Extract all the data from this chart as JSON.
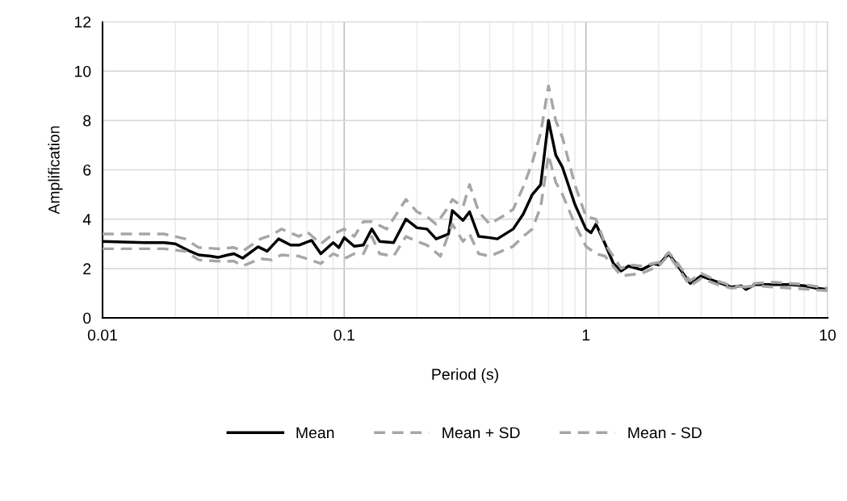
{
  "chart_data": {
    "type": "line",
    "xlabel": "Period (s)",
    "ylabel": "Amplification",
    "log": "x",
    "xlim": [
      0.01,
      10
    ],
    "xticks": [
      0.01,
      0.1,
      1,
      10
    ],
    "ylim": [
      0,
      12
    ],
    "yticks": [
      0,
      2,
      4,
      6,
      8,
      10,
      12
    ],
    "grid": true,
    "legend": "bottom",
    "marker": "none",
    "series": [
      {
        "name": "Mean",
        "color": "#000000",
        "line_style": "solid",
        "x": [
          0.01,
          0.015,
          0.018,
          0.02,
          0.023,
          0.025,
          0.028,
          0.03,
          0.033,
          0.035,
          0.038,
          0.044,
          0.048,
          0.0535,
          0.06,
          0.065,
          0.0733,
          0.08,
          0.09,
          0.095,
          0.1,
          0.11,
          0.12,
          0.13,
          0.14,
          0.16,
          0.18,
          0.2,
          0.22,
          0.24,
          0.27,
          0.28,
          0.31,
          0.33,
          0.36,
          0.4,
          0.43,
          0.5,
          0.55,
          0.6,
          0.65,
          0.7,
          0.75,
          0.8,
          0.9,
          1.0,
          1.05,
          1.1,
          1.2,
          1.3,
          1.4,
          1.5,
          1.7,
          1.9,
          2.0,
          2.2,
          2.4,
          2.7,
          3.0,
          3.5,
          4.0,
          4.4,
          4.6,
          5.0,
          6.0,
          7.0,
          8.0,
          9.0,
          10
        ],
        "values": [
          3.1,
          3.05,
          3.05,
          3.0,
          2.7,
          2.55,
          2.5,
          2.45,
          2.55,
          2.6,
          2.42,
          2.88,
          2.7,
          3.2,
          2.95,
          2.95,
          3.14,
          2.6,
          3.05,
          2.85,
          3.25,
          2.9,
          2.95,
          3.6,
          3.1,
          3.05,
          4.0,
          3.65,
          3.6,
          3.2,
          3.4,
          4.35,
          3.95,
          4.3,
          3.3,
          3.25,
          3.2,
          3.6,
          4.2,
          5.0,
          5.4,
          8.0,
          6.6,
          6.1,
          4.6,
          3.6,
          3.45,
          3.8,
          3.0,
          2.2,
          1.9,
          2.1,
          1.95,
          2.2,
          2.15,
          2.6,
          2.1,
          1.4,
          1.7,
          1.45,
          1.25,
          1.3,
          1.15,
          1.35,
          1.35,
          1.35,
          1.3,
          1.2,
          1.15
        ]
      },
      {
        "name": "Mean + SD",
        "color": "#a6a6a6",
        "line_style": "dashed",
        "x": [
          0.01,
          0.018,
          0.022,
          0.025,
          0.03,
          0.035,
          0.038,
          0.045,
          0.05,
          0.055,
          0.065,
          0.07,
          0.08,
          0.09,
          0.1,
          0.11,
          0.12,
          0.13,
          0.15,
          0.18,
          0.2,
          0.22,
          0.24,
          0.27,
          0.28,
          0.31,
          0.33,
          0.36,
          0.4,
          0.45,
          0.5,
          0.55,
          0.6,
          0.65,
          0.7,
          0.75,
          0.8,
          0.9,
          1.0,
          1.1,
          1.2,
          1.4,
          1.5,
          1.7,
          2.0,
          2.2,
          2.4,
          2.7,
          3.0,
          3.5,
          4.0,
          4.6,
          5.0,
          6,
          8,
          10
        ],
        "values": [
          3.4,
          3.4,
          3.2,
          2.85,
          2.8,
          2.85,
          2.7,
          3.2,
          3.35,
          3.6,
          3.3,
          3.5,
          3.0,
          3.4,
          3.6,
          3.3,
          3.9,
          3.9,
          3.6,
          4.8,
          4.3,
          4.1,
          3.8,
          4.5,
          4.8,
          4.5,
          5.4,
          4.3,
          3.8,
          4.1,
          4.4,
          5.3,
          6.3,
          7.5,
          9.4,
          8.0,
          7.3,
          5.4,
          4.1,
          4.0,
          3.0,
          2.0,
          2.15,
          2.1,
          2.25,
          2.65,
          2.2,
          1.5,
          1.8,
          1.5,
          1.3,
          1.25,
          1.4,
          1.45,
          1.35,
          1.2
        ]
      },
      {
        "name": "Mean - SD",
        "color": "#a6a6a6",
        "line_style": "dashed",
        "x": [
          0.01,
          0.018,
          0.022,
          0.025,
          0.03,
          0.035,
          0.038,
          0.045,
          0.05,
          0.055,
          0.065,
          0.07,
          0.08,
          0.09,
          0.1,
          0.11,
          0.12,
          0.13,
          0.14,
          0.16,
          0.18,
          0.2,
          0.22,
          0.25,
          0.28,
          0.31,
          0.33,
          0.36,
          0.4,
          0.5,
          0.55,
          0.6,
          0.65,
          0.7,
          0.75,
          0.8,
          0.9,
          1.0,
          1.1,
          1.2,
          1.4,
          1.7,
          2.0,
          2.2,
          2.7,
          3.0,
          3.5,
          4.0,
          5,
          10
        ],
        "values": [
          2.8,
          2.8,
          2.7,
          2.35,
          2.3,
          2.3,
          2.1,
          2.4,
          2.35,
          2.55,
          2.5,
          2.4,
          2.2,
          2.6,
          2.4,
          2.6,
          2.6,
          3.3,
          2.6,
          2.5,
          3.3,
          3.1,
          2.95,
          2.5,
          3.8,
          3.1,
          3.4,
          2.6,
          2.5,
          2.9,
          3.3,
          3.6,
          4.5,
          6.6,
          5.5,
          5.0,
          3.8,
          2.9,
          2.6,
          2.5,
          1.7,
          1.8,
          2.1,
          2.55,
          1.3,
          1.6,
          1.35,
          1.2,
          1.3,
          1.1
        ]
      }
    ]
  }
}
